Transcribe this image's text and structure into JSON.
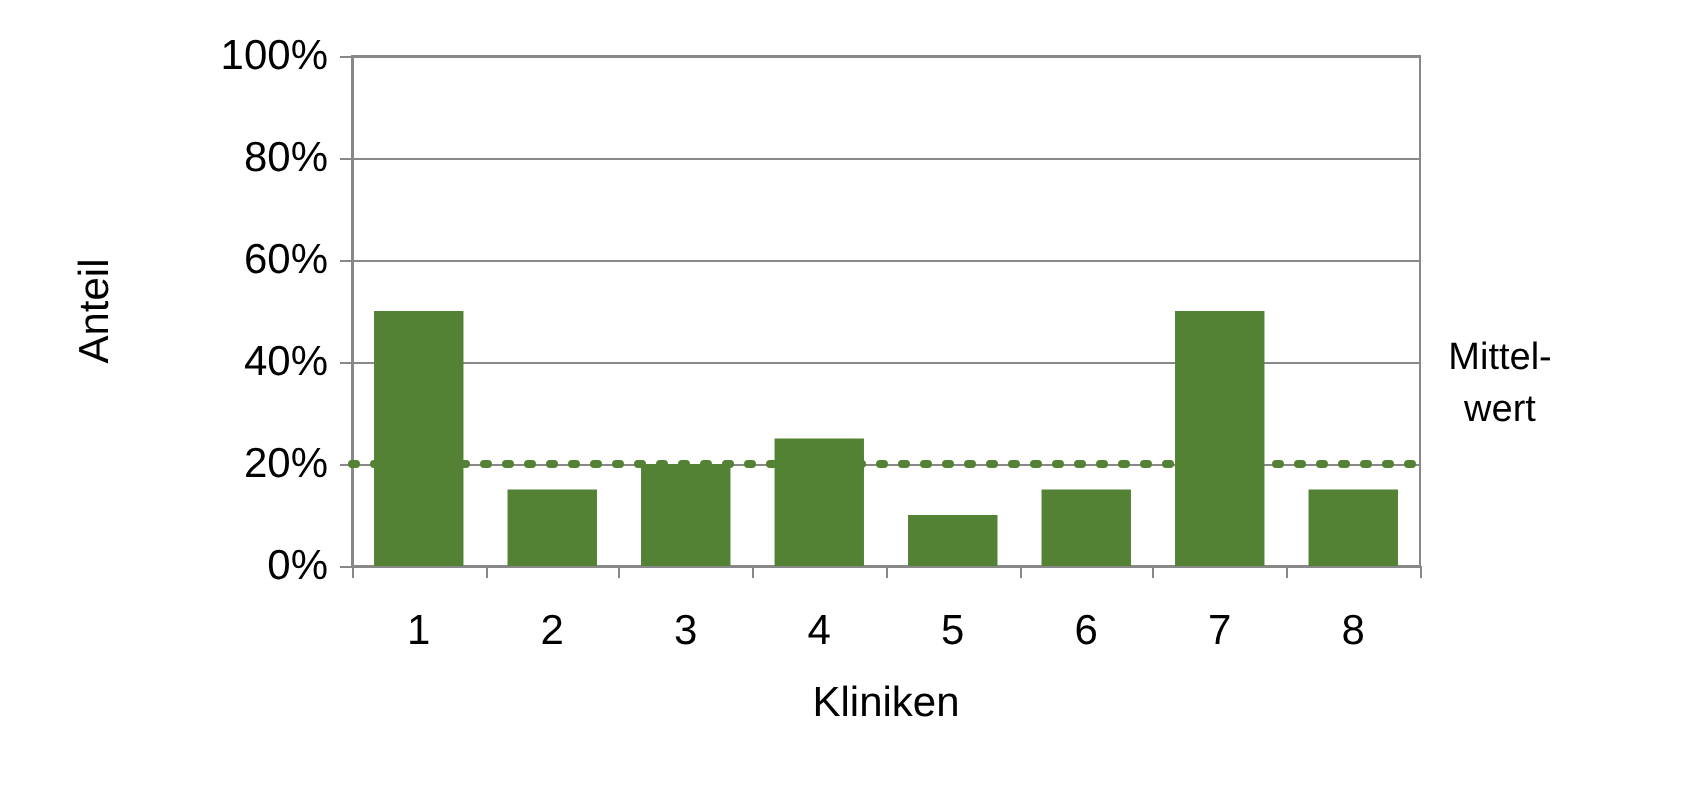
{
  "chart_data": {
    "type": "bar",
    "xlabel": "Kliniken",
    "ylabel": "Anteil",
    "categories": [
      "1",
      "2",
      "3",
      "4",
      "5",
      "6",
      "7",
      "8"
    ],
    "values": [
      50,
      15,
      20,
      25,
      10,
      15,
      50,
      15
    ],
    "color": "#548235",
    "ylim": [
      0,
      100
    ],
    "yticks": [
      {
        "value": 0,
        "label": "0%"
      },
      {
        "value": 20,
        "label": "20%"
      },
      {
        "value": 40,
        "label": "40%"
      },
      {
        "value": 60,
        "label": "60%"
      },
      {
        "value": 80,
        "label": "80%"
      },
      {
        "value": 100,
        "label": "100%"
      }
    ],
    "grid": "y",
    "ref_lines": [
      {
        "axis": "y",
        "value": 20,
        "label": "Mittel-\nwert",
        "color": "#548235",
        "line_style": "dotted"
      }
    ]
  }
}
